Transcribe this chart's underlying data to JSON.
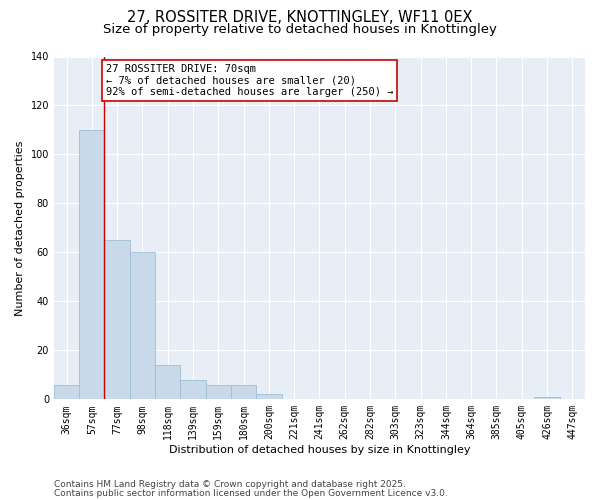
{
  "title_line1": "27, ROSSITER DRIVE, KNOTTINGLEY, WF11 0EX",
  "title_line2": "Size of property relative to detached houses in Knottingley",
  "xlabel": "Distribution of detached houses by size in Knottingley",
  "ylabel": "Number of detached properties",
  "categories": [
    "36sqm",
    "57sqm",
    "77sqm",
    "98sqm",
    "118sqm",
    "139sqm",
    "159sqm",
    "180sqm",
    "200sqm",
    "221sqm",
    "241sqm",
    "262sqm",
    "282sqm",
    "303sqm",
    "323sqm",
    "344sqm",
    "364sqm",
    "385sqm",
    "405sqm",
    "426sqm",
    "447sqm"
  ],
  "values": [
    6,
    110,
    65,
    60,
    14,
    8,
    6,
    6,
    2,
    0,
    0,
    0,
    0,
    0,
    0,
    0,
    0,
    0,
    0,
    1,
    0
  ],
  "bar_color": "#c8daea",
  "bar_edge_color": "#a0bfd4",
  "red_line_x": 1.5,
  "annotation_text": "27 ROSSITER DRIVE: 70sqm\n← 7% of detached houses are smaller (20)\n92% of semi-detached houses are larger (250) →",
  "annotation_box_color": "#ffffff",
  "annotation_box_edge": "#cc0000",
  "red_line_color": "#cc0000",
  "ylim": [
    0,
    140
  ],
  "yticks": [
    0,
    20,
    40,
    60,
    80,
    100,
    120,
    140
  ],
  "fig_bg_color": "#ffffff",
  "plot_bg_color": "#e8eef5",
  "grid_color": "#ffffff",
  "footer_line1": "Contains HM Land Registry data © Crown copyright and database right 2025.",
  "footer_line2": "Contains public sector information licensed under the Open Government Licence v3.0.",
  "title_fontsize": 10.5,
  "subtitle_fontsize": 9.5,
  "label_fontsize": 8,
  "tick_fontsize": 7,
  "annot_fontsize": 7.5,
  "footer_fontsize": 6.5
}
